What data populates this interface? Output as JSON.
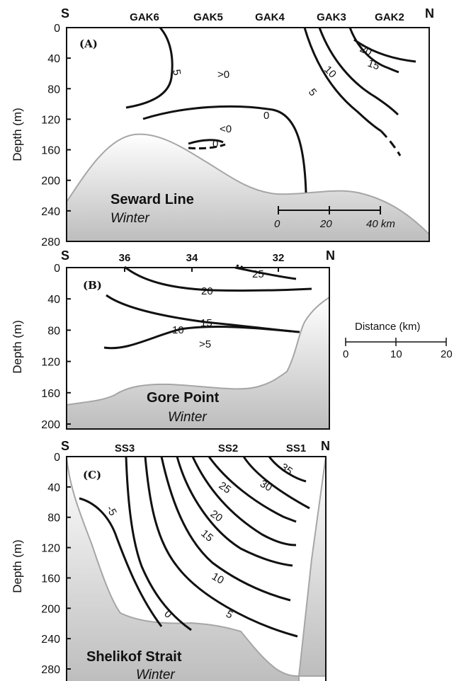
{
  "colors": {
    "bathy_top": "#ffffff",
    "bathy_bottom": "#bdbdbd",
    "bathy_edge": "#a6a6a6",
    "contour": "#111111"
  },
  "scale_outside": {
    "title": "Distance (km)",
    "ticks": [
      "0",
      "10",
      "20"
    ]
  },
  "chart_data": [
    {
      "type": "contour",
      "panel_label": "(A)",
      "title": "Seward Line",
      "season": "Winter",
      "left_end": "S",
      "right_end": "N",
      "stations": [
        "GAK6",
        "GAK5",
        "GAK4",
        "GAK3",
        "GAK2"
      ],
      "ylabel": "Depth  (m)",
      "ylim": [
        0,
        280
      ],
      "yticks": [
        "0",
        "40",
        "80",
        "120",
        "160",
        "200",
        "240",
        "280"
      ],
      "contour_labels": [
        "5",
        ">0",
        "0",
        "<0",
        "0",
        "5",
        "10",
        "15",
        "20"
      ],
      "scale_bar": {
        "ticks": [
          "0",
          "20"
        ],
        "end_label": "40 km"
      }
    },
    {
      "type": "contour",
      "panel_label": "(B)",
      "title": "Gore Point",
      "season": "Winter",
      "left_end": "S",
      "right_end": "N",
      "stations": [
        "36",
        "34",
        "32"
      ],
      "ylabel": "Depth  (m)",
      "ylim": [
        0,
        200
      ],
      "yticks": [
        "0",
        "40",
        "80",
        "120",
        "160",
        "200"
      ],
      "contour_labels": [
        "25",
        "20",
        "15",
        "10",
        ">5"
      ]
    },
    {
      "type": "contour",
      "panel_label": "(C)",
      "title": "Shelikof Strait",
      "season": "Winter",
      "left_end": "S",
      "right_end": "N",
      "stations": [
        "SS3",
        "SS2",
        "SS1"
      ],
      "ylabel": "Depth  (m)",
      "ylim": [
        0,
        280
      ],
      "yticks": [
        "0",
        "40",
        "80",
        "120",
        "160",
        "200",
        "240",
        "280"
      ],
      "contour_labels": [
        "-5",
        "0",
        "5",
        "10",
        "15",
        "20",
        "25",
        "30",
        "35"
      ]
    }
  ]
}
